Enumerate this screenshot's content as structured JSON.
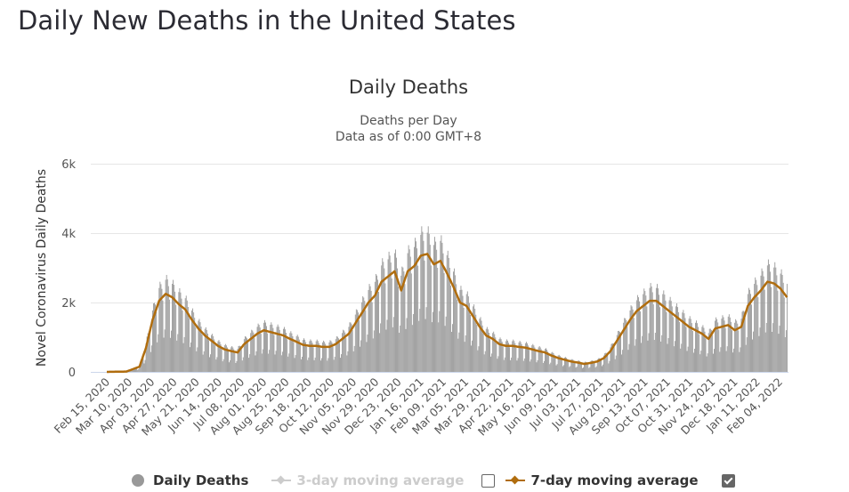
{
  "page": {
    "title": "Daily New Deaths in the United States"
  },
  "chart_data": {
    "type": "bar",
    "title": "Daily Deaths",
    "subtitle_lines": [
      "Deaths per Day",
      "Data as of 0:00 GMT+8"
    ],
    "ylabel": "Novel Coronavirus Daily Deaths",
    "xlabel": "",
    "ylim": [
      0,
      6000
    ],
    "yticks": [
      0,
      2000,
      4000,
      6000
    ],
    "ytick_labels": [
      "0",
      "2k",
      "4k",
      "6k"
    ],
    "grid": true,
    "start_date": "Feb 15, 2020",
    "num_days": 729,
    "xtick_every_days": 24,
    "xtick_labels": [
      "Feb 15, 2020",
      "Mar 10, 2020",
      "Apr 03, 2020",
      "Apr 27, 2020",
      "May 21, 2020",
      "Jun 14, 2020",
      "Jul 08, 2020",
      "Aug 01, 2020",
      "Aug 25, 2020",
      "Sep 18, 2020",
      "Oct 12, 2020",
      "Nov 05, 2020",
      "Nov 29, 2020",
      "Dec 23, 2020",
      "Jan 16, 2021",
      "Feb 09, 2021",
      "Mar 05, 2021",
      "Mar 29, 2021",
      "Apr 22, 2021",
      "May 16, 2021",
      "Jun 09, 2021",
      "Jul 03, 2021",
      "Jul 27, 2021",
      "Aug 20, 2021",
      "Sep 13, 2021",
      "Oct 07, 2021",
      "Oct 31, 2021",
      "Nov 24, 2021",
      "Dec 18, 2021",
      "Jan 11, 2022",
      "Feb 04, 2022"
    ],
    "series": [
      {
        "name": "7-day moving average",
        "color": "#b06d0e",
        "visible": true,
        "points_day_index": [
          0,
          21,
          35,
          42,
          49,
          56,
          63,
          70,
          77,
          84,
          91,
          98,
          105,
          112,
          119,
          126,
          133,
          140,
          147,
          154,
          161,
          168,
          175,
          182,
          189,
          196,
          203,
          210,
          217,
          224,
          231,
          238,
          245,
          252,
          259,
          266,
          273,
          280,
          287,
          294,
          301,
          308,
          315,
          322,
          329,
          336,
          343,
          350,
          357,
          364,
          371,
          378,
          385,
          392,
          399,
          406,
          413,
          420,
          427,
          434,
          441,
          448,
          455,
          462,
          469,
          476,
          483,
          490,
          497,
          504,
          511,
          518,
          525,
          532,
          539,
          546,
          553,
          560,
          567,
          574,
          581,
          588,
          595,
          602,
          609,
          616,
          623,
          630,
          637,
          644,
          651,
          658,
          665,
          672,
          679,
          686,
          693,
          700,
          707,
          714,
          721,
          728
        ],
        "values": [
          0,
          10,
          150,
          700,
          1500,
          2050,
          2250,
          2150,
          1950,
          1800,
          1500,
          1250,
          1050,
          900,
          750,
          650,
          600,
          560,
          800,
          950,
          1100,
          1200,
          1150,
          1100,
          1050,
          950,
          870,
          780,
          750,
          750,
          720,
          720,
          800,
          950,
          1100,
          1400,
          1700,
          2000,
          2200,
          2600,
          2750,
          2900,
          2350,
          2900,
          3050,
          3350,
          3400,
          3100,
          3200,
          2850,
          2450,
          2000,
          1900,
          1600,
          1300,
          1050,
          950,
          800,
          750,
          750,
          720,
          700,
          650,
          600,
          560,
          470,
          400,
          350,
          300,
          270,
          230,
          260,
          300,
          400,
          600,
          900,
          1200,
          1500,
          1750,
          1900,
          2050,
          2050,
          1900,
          1750,
          1600,
          1450,
          1300,
          1200,
          1100,
          950,
          1250,
          1300,
          1350,
          1200,
          1300,
          1900,
          2150,
          2350,
          2600,
          2550,
          2400,
          2150
        ]
      },
      {
        "name": "Daily Deaths",
        "color": "#999999",
        "visible": true,
        "weekday_factors": [
          1.18,
          1.25,
          1.2,
          1.12,
          0.95,
          0.45,
          0.55
        ]
      },
      {
        "name": "3-day moving average",
        "color": "#cccccc",
        "visible": false
      }
    ],
    "legend": {
      "position": "bottom",
      "items": [
        {
          "label": "Daily Deaths",
          "checkbox": null
        },
        {
          "label": "3-day moving average",
          "checked": false
        },
        {
          "label": "7-day moving average",
          "checked": true
        }
      ]
    }
  }
}
